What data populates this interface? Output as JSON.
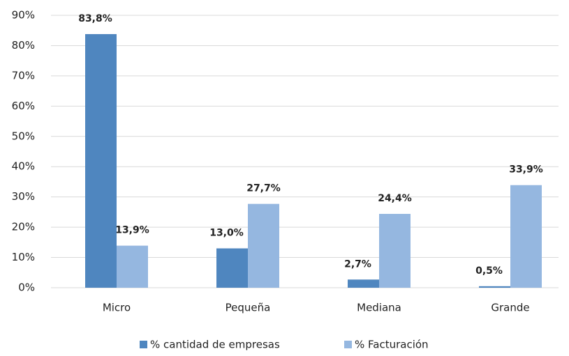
{
  "chart_data": {
    "type": "bar",
    "categories": [
      "Micro",
      "Pequeña",
      "Mediana",
      "Grande"
    ],
    "series": [
      {
        "name": "% cantidad de empresas",
        "color": "#4f86bf",
        "values": [
          83.8,
          13.0,
          2.7,
          0.5
        ],
        "value_labels": [
          "83,8%",
          "13,0%",
          "2,7%",
          "0,5%"
        ]
      },
      {
        "name": "% Facturación",
        "color": "#95b7e0",
        "values": [
          13.9,
          27.7,
          24.4,
          33.9
        ],
        "value_labels": [
          "13,9%",
          "27,7%",
          "24,4%",
          "33,9%"
        ]
      }
    ],
    "ylim": [
      0,
      90
    ],
    "yticks": [
      {
        "value": 0,
        "label": "0%"
      },
      {
        "value": 10,
        "label": "10%"
      },
      {
        "value": 20,
        "label": "20%"
      },
      {
        "value": 30,
        "label": "30%"
      },
      {
        "value": 40,
        "label": "40%"
      },
      {
        "value": 50,
        "label": "50%"
      },
      {
        "value": 60,
        "label": "60%"
      },
      {
        "value": 70,
        "label": "70%"
      },
      {
        "value": 80,
        "label": "80%"
      },
      {
        "value": 90,
        "label": "90%"
      }
    ],
    "grid": true,
    "legend": "bottom"
  }
}
